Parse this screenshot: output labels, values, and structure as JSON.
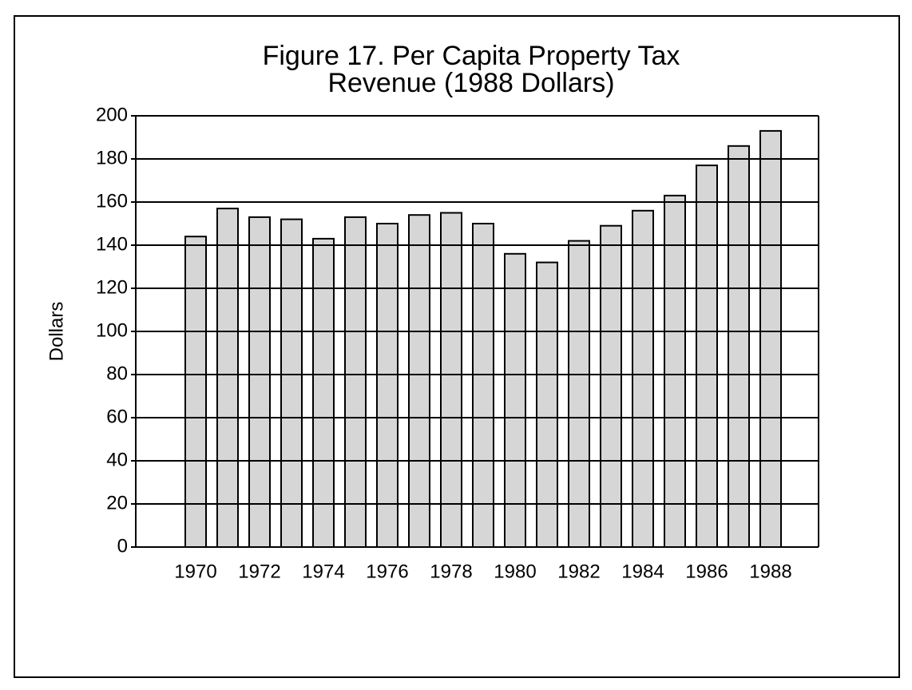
{
  "chart_data": {
    "type": "bar",
    "title": "Figure 17.  Per Capita Property Tax",
    "subtitle": "Revenue (1988 Dollars)",
    "y_label": "Dollars",
    "categories": [
      "1970",
      null,
      "1972",
      null,
      "1974",
      null,
      "1976",
      null,
      "1978",
      null,
      "1980",
      null,
      "1982",
      null,
      "1984",
      null,
      "1986",
      null,
      "1988"
    ],
    "values": [
      144,
      157,
      153,
      152,
      143,
      153,
      150,
      154,
      155,
      150,
      136,
      132,
      142,
      149,
      156,
      163,
      177,
      186,
      193
    ],
    "color": "#d6d6d6",
    "ylim": [
      0,
      200
    ],
    "yticks": [
      0,
      20,
      40,
      60,
      80,
      100,
      120,
      140,
      160,
      180,
      200
    ],
    "grid": true
  }
}
